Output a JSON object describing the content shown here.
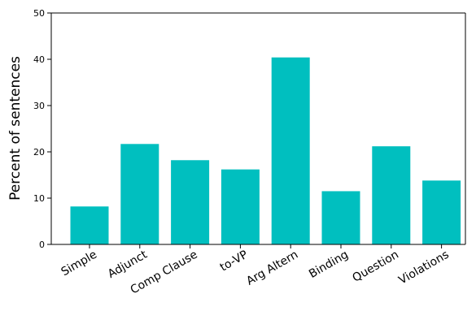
{
  "chart_data": {
    "type": "bar",
    "title": "",
    "xlabel": "",
    "ylabel": "Percent of sentences",
    "categories": [
      "Simple",
      "Adjunct",
      "Comp Clause",
      "to-VP",
      "Arg Altern",
      "Binding",
      "Question",
      "Violations"
    ],
    "values": [
      8.2,
      21.7,
      18.2,
      16.2,
      40.4,
      11.5,
      21.2,
      13.8
    ],
    "ylim": [
      0,
      50
    ],
    "yticks": [
      "0",
      "10",
      "20",
      "30",
      "40",
      "50"
    ],
    "bar_color": "#00bfbf",
    "grid": false,
    "legend": "none"
  }
}
